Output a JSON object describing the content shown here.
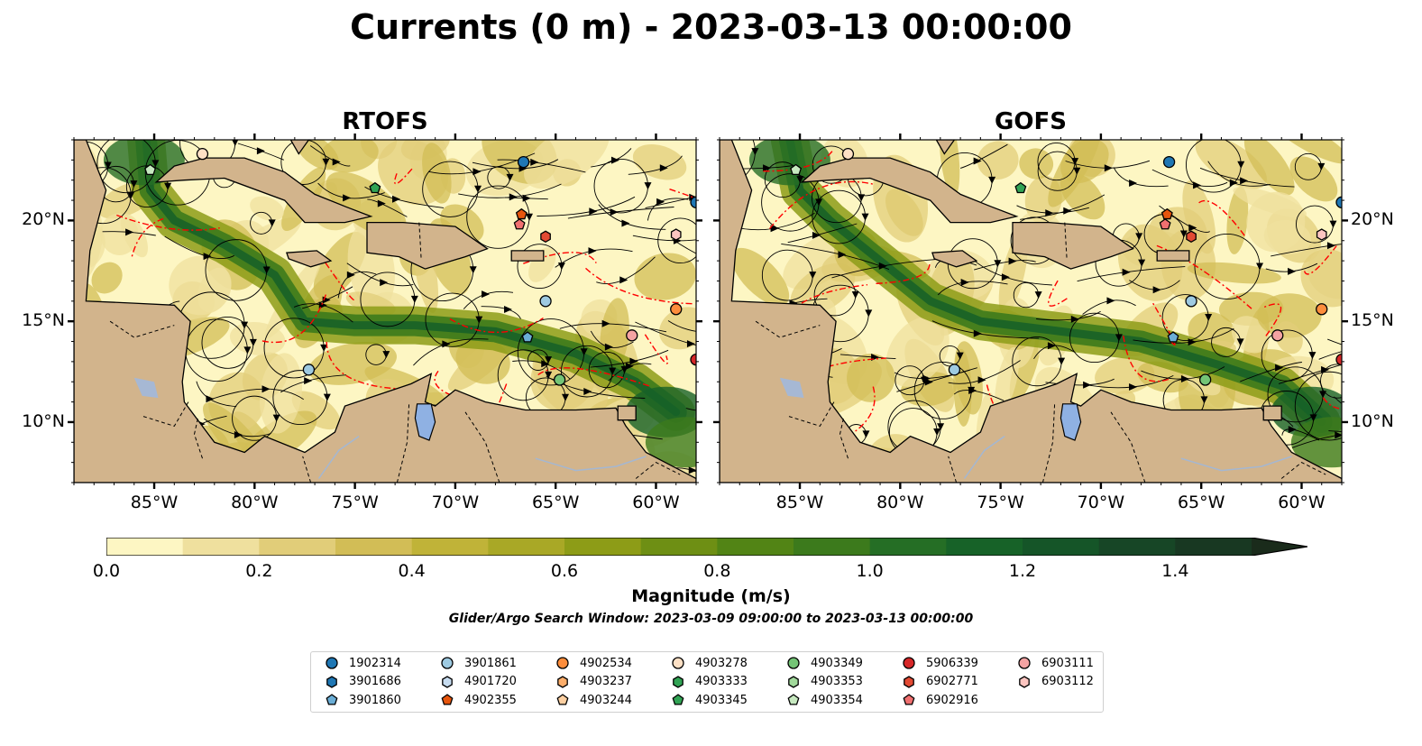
{
  "title": "Currents (0 m) - 2023-03-13 00:00:00",
  "panels": [
    {
      "title": "RTOFS"
    },
    {
      "title": "GOFS"
    }
  ],
  "axes": {
    "lon_ticks": [
      "85°W",
      "80°W",
      "75°W",
      "70°W",
      "65°W",
      "60°W"
    ],
    "lat_ticks": [
      "20°N",
      "15°N",
      "10°N"
    ],
    "lon_range": [
      -89,
      -58
    ],
    "lat_range": [
      7,
      24
    ]
  },
  "colorbar": {
    "label": "Magnitude (m/s)",
    "ticks": [
      "0.0",
      "0.2",
      "0.4",
      "0.6",
      "0.8",
      "1.0",
      "1.2",
      "1.4"
    ],
    "range": [
      0,
      1.5
    ],
    "extend": "max",
    "colors": [
      "#fdf6c3",
      "#efe09e",
      "#e1cd79",
      "#d2bd56",
      "#c0b338",
      "#a9a826",
      "#8d9c17",
      "#6e8f14",
      "#528415",
      "#3c7a1c",
      "#256e25",
      "#176228",
      "#155528",
      "#174626",
      "#183822",
      "#1a2b1b"
    ]
  },
  "search_window": "Glider/Argo Search Window: 2023-03-09 09:00:00 to 2023-03-13 00:00:00",
  "colors": {
    "land": "#d2b48c",
    "lake": "#8fb1e3",
    "boundary": "#ff0000",
    "ocean_low": "#fdf6c3"
  },
  "legend": [
    {
      "id": "1902314",
      "marker": "circle",
      "color": "#1f77b4"
    },
    {
      "id": "3901686",
      "marker": "hexagon",
      "color": "#1f77b4"
    },
    {
      "id": "3901860",
      "marker": "pentagon",
      "color": "#6baed6"
    },
    {
      "id": "3901861",
      "marker": "circle",
      "color": "#9ecae1"
    },
    {
      "id": "4901720",
      "marker": "hexagon",
      "color": "#c6dbef"
    },
    {
      "id": "4902355",
      "marker": "pentagon",
      "color": "#e6550d"
    },
    {
      "id": "4902534",
      "marker": "circle",
      "color": "#fd8d3c"
    },
    {
      "id": "4903237",
      "marker": "hexagon",
      "color": "#fdae6b"
    },
    {
      "id": "4903244",
      "marker": "pentagon",
      "color": "#fdd0a2"
    },
    {
      "id": "4903278",
      "marker": "circle",
      "color": "#fde0c5"
    },
    {
      "id": "4903333",
      "marker": "hexagon",
      "color": "#31a354"
    },
    {
      "id": "4903345",
      "marker": "pentagon",
      "color": "#31a354"
    },
    {
      "id": "4903349",
      "marker": "circle",
      "color": "#74c476"
    },
    {
      "id": "4903353",
      "marker": "hexagon",
      "color": "#a1d99b"
    },
    {
      "id": "4903354",
      "marker": "pentagon",
      "color": "#c7e9c0"
    },
    {
      "id": "5906339",
      "marker": "circle",
      "color": "#d62728"
    },
    {
      "id": "6902771",
      "marker": "hexagon",
      "color": "#e34a33"
    },
    {
      "id": "6902916",
      "marker": "pentagon",
      "color": "#f07070"
    },
    {
      "id": "6903111",
      "marker": "circle",
      "color": "#f4a3a3"
    },
    {
      "id": "6903112",
      "marker": "hexagon",
      "color": "#fcc5c0"
    }
  ],
  "floats": [
    {
      "id": "4903354",
      "lon": -85.2,
      "lat": 22.5
    },
    {
      "id": "4903278",
      "lon": -82.6,
      "lat": 23.3
    },
    {
      "id": "4903345",
      "lon": -74.0,
      "lat": 21.6
    },
    {
      "id": "1902314",
      "lon": -66.6,
      "lat": 22.9
    },
    {
      "id": "4902355",
      "lon": -66.7,
      "lat": 20.3
    },
    {
      "id": "6902916",
      "lon": -66.8,
      "lat": 19.8
    },
    {
      "id": "6902771",
      "lon": -65.5,
      "lat": 19.2
    },
    {
      "id": "6903112",
      "lon": -59.0,
      "lat": 19.3
    },
    {
      "id": "3901861",
      "lon": -65.5,
      "lat": 16.0
    },
    {
      "id": "3901860",
      "lon": -66.4,
      "lat": 14.2
    },
    {
      "id": "4902534",
      "lon": -59.0,
      "lat": 15.6
    },
    {
      "id": "6903111",
      "lon": -61.2,
      "lat": 14.3
    },
    {
      "id": "4903349",
      "lon": -64.8,
      "lat": 12.1
    },
    {
      "id": "3901861",
      "lon": -77.3,
      "lat": 12.6
    },
    {
      "id": "5906339",
      "lon": -58.0,
      "lat": 13.1
    },
    {
      "id": "1902314",
      "lon": -58.0,
      "lat": 20.9
    }
  ]
}
